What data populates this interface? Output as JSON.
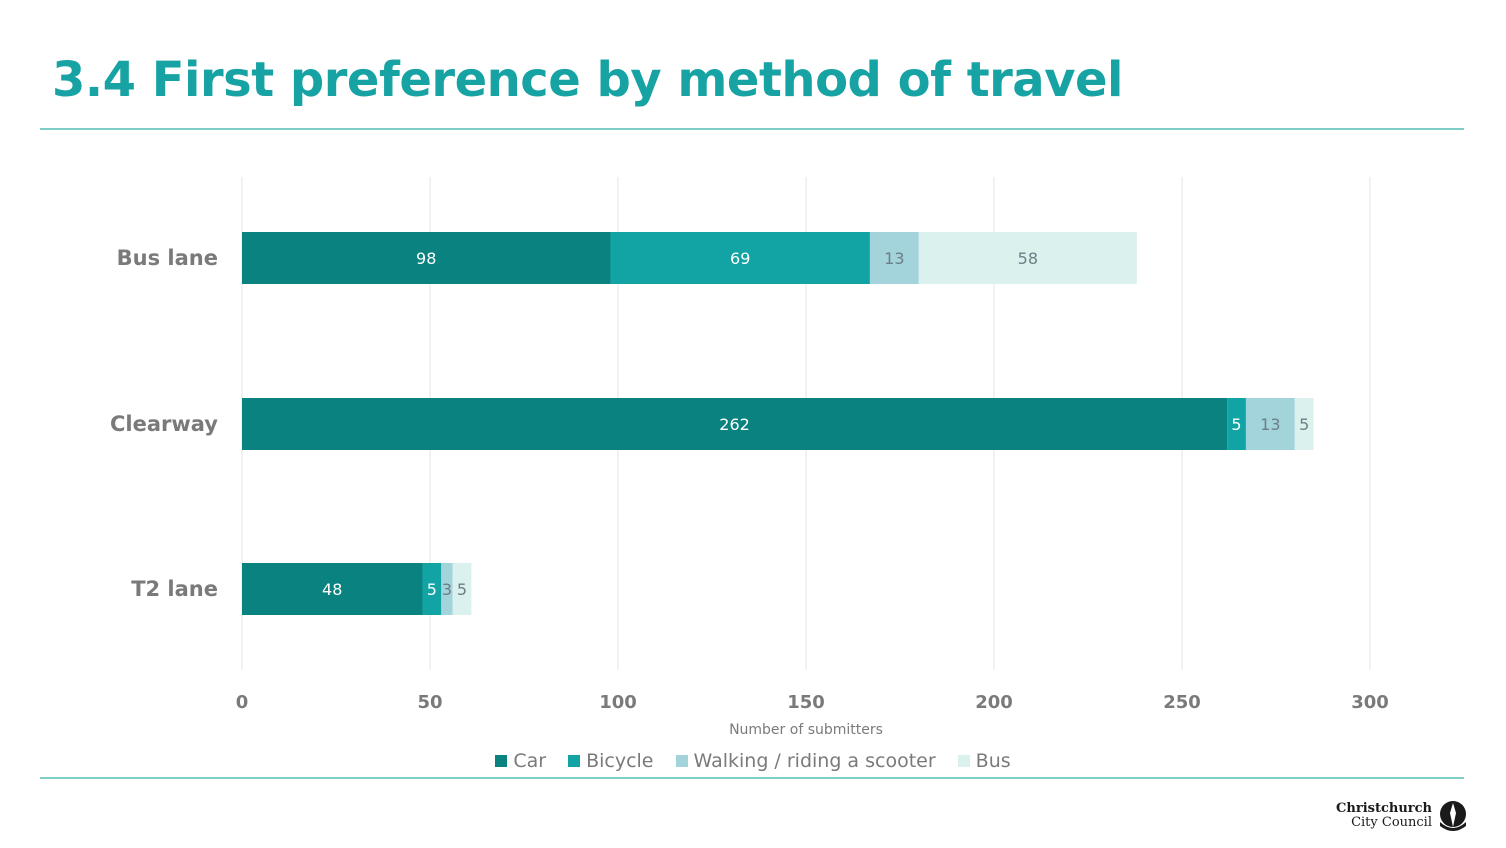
{
  "title": "3.4 First preference by method of travel",
  "logo": {
    "line1": "Christchurch",
    "line2": "City Council"
  },
  "colors": {
    "Car": "#0a8280",
    "Bicycle": "#12a3a4",
    "Walking / riding a scooter": "#a3d3db",
    "Bus": "#dbf1ee",
    "rule": "#7ecdc7",
    "title": "#17a2a3"
  },
  "chart_data": {
    "type": "bar",
    "orientation": "horizontal",
    "stacked": true,
    "categories": [
      "Bus lane",
      "Clearway",
      "T2 lane"
    ],
    "series": [
      {
        "name": "Car",
        "values": [
          98,
          262,
          48
        ]
      },
      {
        "name": "Bicycle",
        "values": [
          69,
          5,
          5
        ]
      },
      {
        "name": "Walking / riding a scooter",
        "values": [
          13,
          13,
          3
        ]
      },
      {
        "name": "Bus",
        "values": [
          58,
          5,
          5
        ]
      }
    ],
    "xlabel": "Number of submitters",
    "ylabel": "",
    "xlim": [
      0,
      300
    ],
    "xticks": [
      0,
      50,
      100,
      150,
      200,
      250,
      300
    ],
    "grid": "vertical",
    "legend": "bottom-center",
    "data_labels": true
  }
}
